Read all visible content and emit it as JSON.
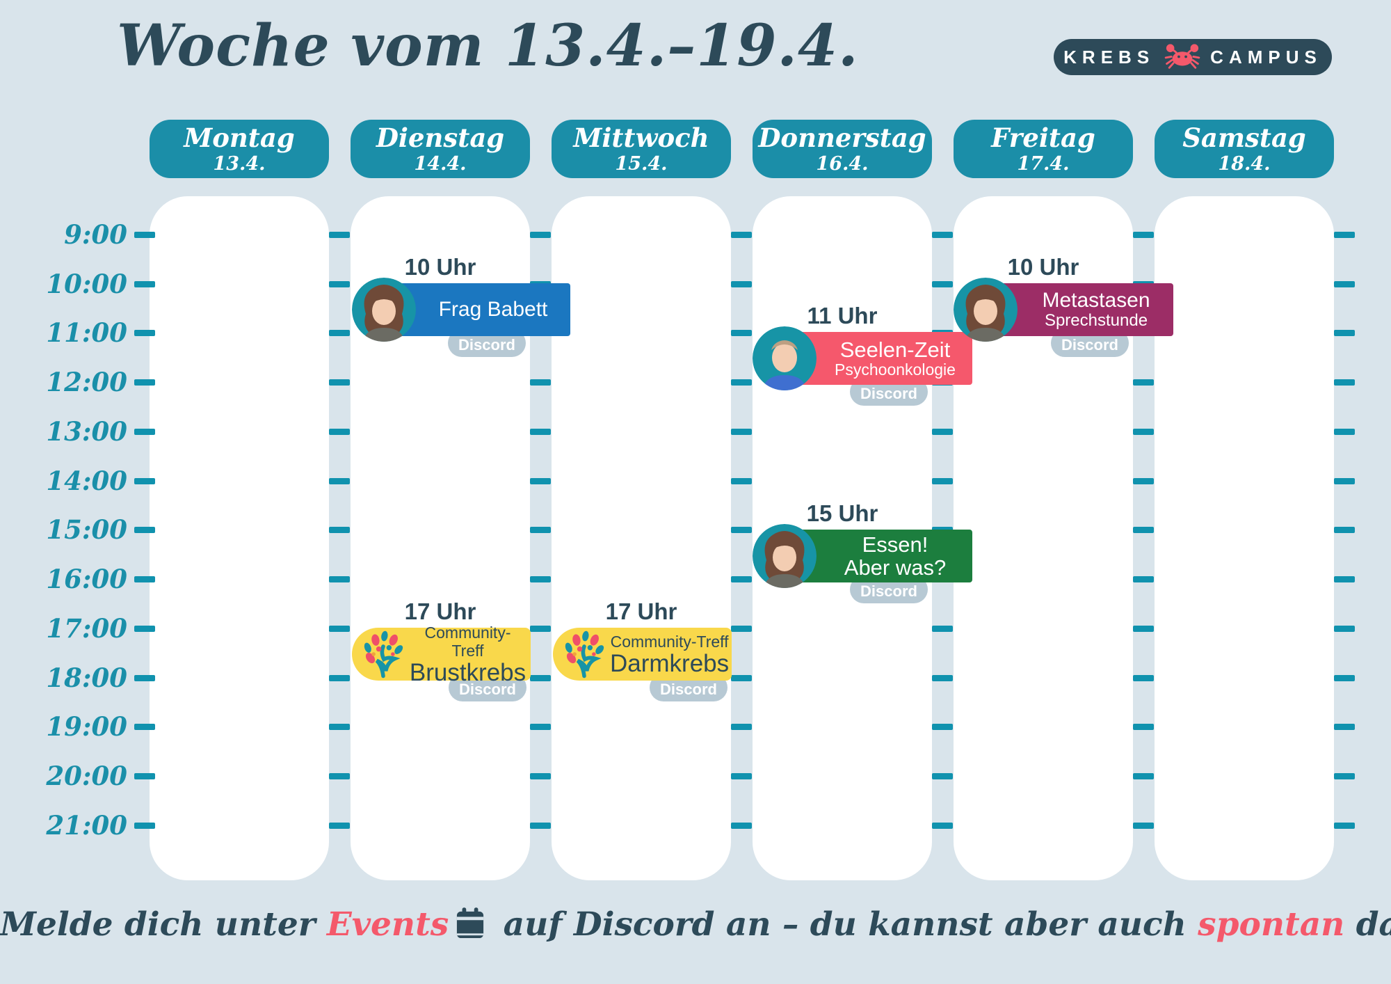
{
  "title": "Woche vom 13.4.–19.4.",
  "brand": {
    "word1": "KREBS",
    "word2": "CAMPUS",
    "icon": "crab-icon"
  },
  "days": [
    {
      "name": "Montag",
      "date": "13.4."
    },
    {
      "name": "Dienstag",
      "date": "14.4."
    },
    {
      "name": "Mittwoch",
      "date": "15.4."
    },
    {
      "name": "Donnerstag",
      "date": "16.4."
    },
    {
      "name": "Freitag",
      "date": "17.4."
    },
    {
      "name": "Samstag",
      "date": "18.4."
    }
  ],
  "times": [
    "9:00",
    "10:00",
    "11:00",
    "12:00",
    "13:00",
    "14:00",
    "15:00",
    "16:00",
    "17:00",
    "18:00",
    "19:00",
    "20:00",
    "21:00"
  ],
  "events": [
    {
      "id": "frag-babett",
      "day": "Dienstag",
      "time": "10 Uhr",
      "title": "Frag Babett",
      "subtitle": "",
      "platform": "Discord",
      "color": "#1b77c0"
    },
    {
      "id": "seelen-zeit",
      "day": "Donnerstag",
      "time": "11 Uhr",
      "title": "Seelen-Zeit",
      "subtitle": "Psychoonkologie",
      "platform": "Discord",
      "color": "#f5586c"
    },
    {
      "id": "metastasen",
      "day": "Freitag",
      "time": "10 Uhr",
      "title": "Metastasen",
      "subtitle": "Sprechstunde",
      "platform": "Discord",
      "color": "#9c2d66"
    },
    {
      "id": "essen-aber-was",
      "day": "Donnerstag",
      "time": "15 Uhr",
      "title": "Essen!",
      "subtitle": "Aber was?",
      "platform": "Discord",
      "color": "#1c7e3e"
    },
    {
      "id": "treff-brustkrebs",
      "day": "Dienstag",
      "time": "17 Uhr",
      "title": "Community-Treff",
      "subtitle": "Brustkrebs",
      "platform": "Discord",
      "color": "#f9d84b"
    },
    {
      "id": "treff-darmkrebs",
      "day": "Mittwoch",
      "time": "17 Uhr",
      "title": "Community-Treff",
      "subtitle": "Darmkrebs",
      "platform": "Discord",
      "color": "#f9d84b"
    }
  ],
  "footer": {
    "part1": "Melde dich unter ",
    "events_word": "Events",
    "part2": " auf Discord an – du kannst aber auch ",
    "spontan_word": "spontan",
    "part3": " dazu kommen ",
    "smiley": "☺"
  },
  "colors": {
    "background": "#d9e4eb",
    "slate": "#2d4a59",
    "teal": "#1b8ea8",
    "tick_teal": "#1092ae",
    "accent_pink": "#f4596b",
    "badge_gray": "#b7c9d4",
    "event_blue": "#1b77c0",
    "event_pink": "#f5586c",
    "event_purple": "#9c2d66",
    "event_green": "#1c7e3e",
    "event_yellow": "#f9d84b"
  }
}
